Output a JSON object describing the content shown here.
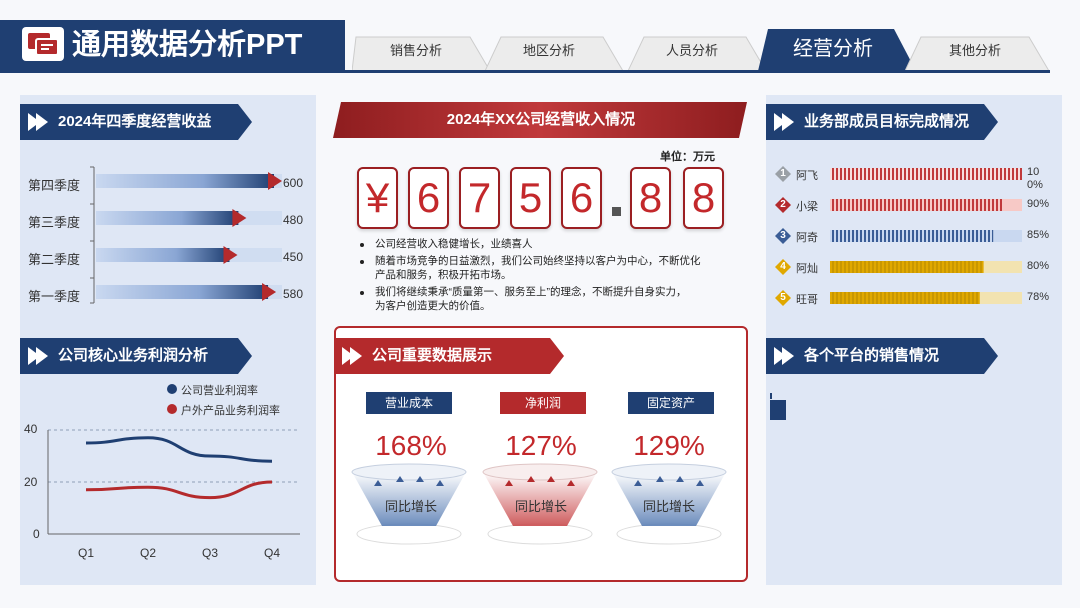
{
  "app_title": "通用数据分析PPT",
  "tabs": [
    {
      "label": "销售分析",
      "active": false
    },
    {
      "label": "地区分析",
      "active": false
    },
    {
      "label": "人员分析",
      "active": false
    },
    {
      "label": "经营分析",
      "active": true
    },
    {
      "label": "其他分析",
      "active": false
    }
  ],
  "colors": {
    "navy": "#1f3f72",
    "red": "#b42a2c",
    "gold": "#e0a800",
    "panel": "#dfe7f5"
  },
  "icons": {
    "logo": "slides-icon",
    "section": "play-arrow-icon"
  },
  "sections": {
    "q4_income": "2024年四季度经营收益",
    "profit": "公司核心业务利润分析",
    "company_income": "2024年XX公司经营收入情况",
    "key_data": "公司重要数据展示",
    "members": "业务部成员目标完成情况",
    "platforms": "各个平台的销售情况"
  },
  "revenue": {
    "unit": "单位：万元",
    "digits": [
      "¥",
      "6",
      "7",
      "5",
      "6",
      "8",
      "8"
    ],
    "bullets": [
      "公司经营收入稳健增长，业绩喜人",
      "随着市场竞争的日益激烈，我们公司始终坚持以客户为中心，不断优化",
      "产品和服务，积极开拓市场。",
      "我们将继续秉承“质量第一、服务至上”的理念，不断提升自身实力，",
      "为客户创造更大的价值。"
    ]
  },
  "kpis": [
    {
      "label": "营业成本",
      "value": "168%",
      "note": "同比增长",
      "color": "#1f3f72"
    },
    {
      "label": "净利润",
      "value": "127%",
      "note": "同比增长",
      "color": "#b42a2c"
    },
    {
      "label": "固定资产",
      "value": "129%",
      "note": "同比增长",
      "color": "#1f3f72"
    }
  ],
  "members": [
    {
      "rank": "1",
      "name": "阿飞",
      "value": 100,
      "label": "100%"
    },
    {
      "rank": "2",
      "name": "小梁",
      "value": 90,
      "label": "90%"
    },
    {
      "rank": "3",
      "name": "阿奇",
      "value": 85,
      "label": "85%"
    },
    {
      "rank": "4",
      "name": "阿灿",
      "value": 80,
      "label": "80%"
    },
    {
      "rank": "5",
      "name": "旺哥",
      "value": 78,
      "label": "78%"
    }
  ],
  "chart_data": [
    {
      "type": "bar",
      "orientation": "horizontal",
      "categories": [
        "第四季度",
        "第三季度",
        "第二季度",
        "第一季度"
      ],
      "values": [
        600,
        480,
        450,
        580
      ],
      "title": "2024年四季度经营收益"
    },
    {
      "type": "line",
      "title": "公司核心业务利润分析",
      "categories": [
        "Q1",
        "Q2",
        "Q3",
        "Q4"
      ],
      "series": [
        {
          "name": "公司营业利润率",
          "values": [
            35,
            37,
            30,
            28
          ],
          "color": "#1f3f72"
        },
        {
          "name": "户外产品业务利润率",
          "values": [
            17,
            18,
            14,
            20
          ],
          "color": "#b42a2c"
        }
      ],
      "yticks": [
        "0",
        "20",
        "40"
      ],
      "ylim": [
        0,
        40
      ],
      "grid": true,
      "legend": "top"
    }
  ]
}
